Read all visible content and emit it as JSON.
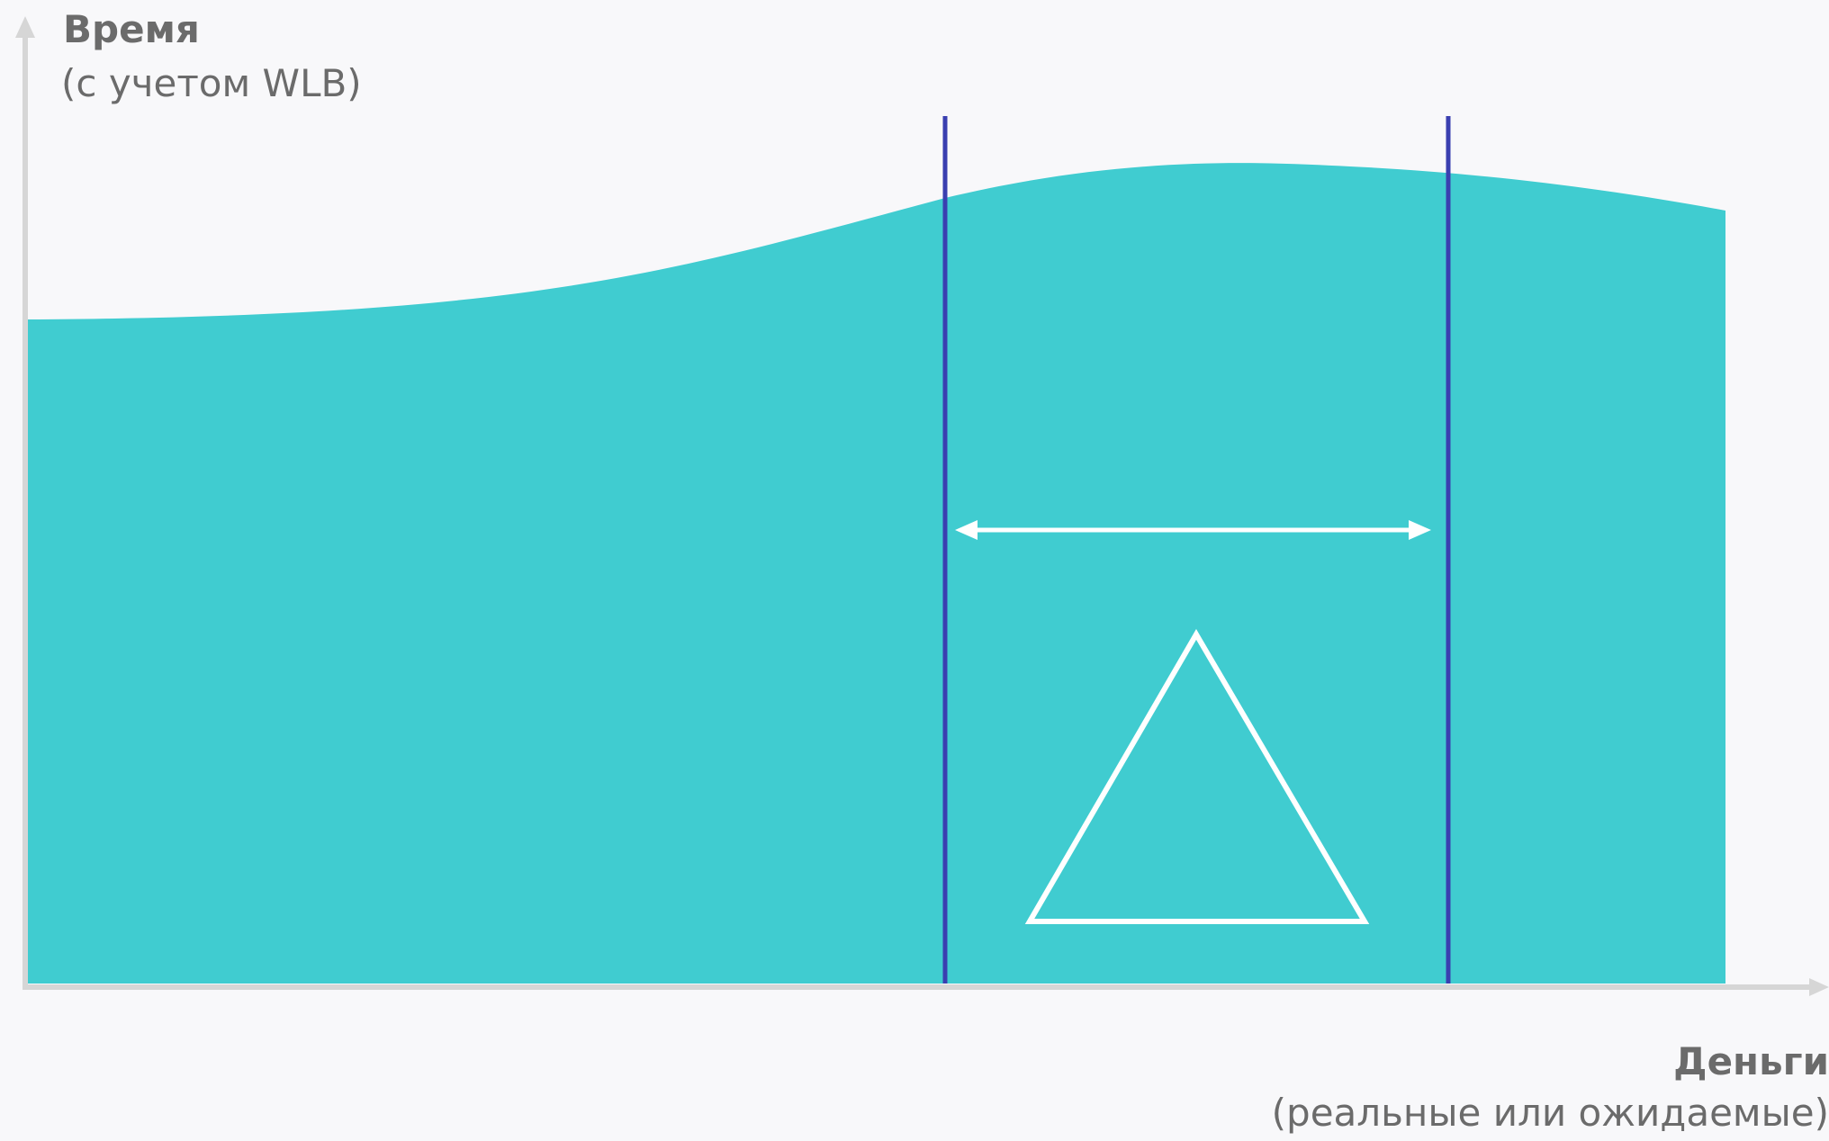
{
  "diagram": {
    "y_axis": {
      "title": "Время",
      "subtitle": "(с учетом WLB)"
    },
    "x_axis": {
      "title": "Деньги",
      "subtitle": "(реальные или ожидаемые)"
    },
    "colors": {
      "area_fill": "#40ccd0",
      "boundary_lines": "#3a3fb0",
      "axis": "#d6d6d6",
      "arrow": "#ffffff",
      "triangle": "#ffffff",
      "text": "#6b6b6b",
      "background": "#f8f8fa"
    },
    "icons": {
      "range_arrow": "double-headed-arrow-icon",
      "delta": "delta-triangle-icon"
    }
  }
}
